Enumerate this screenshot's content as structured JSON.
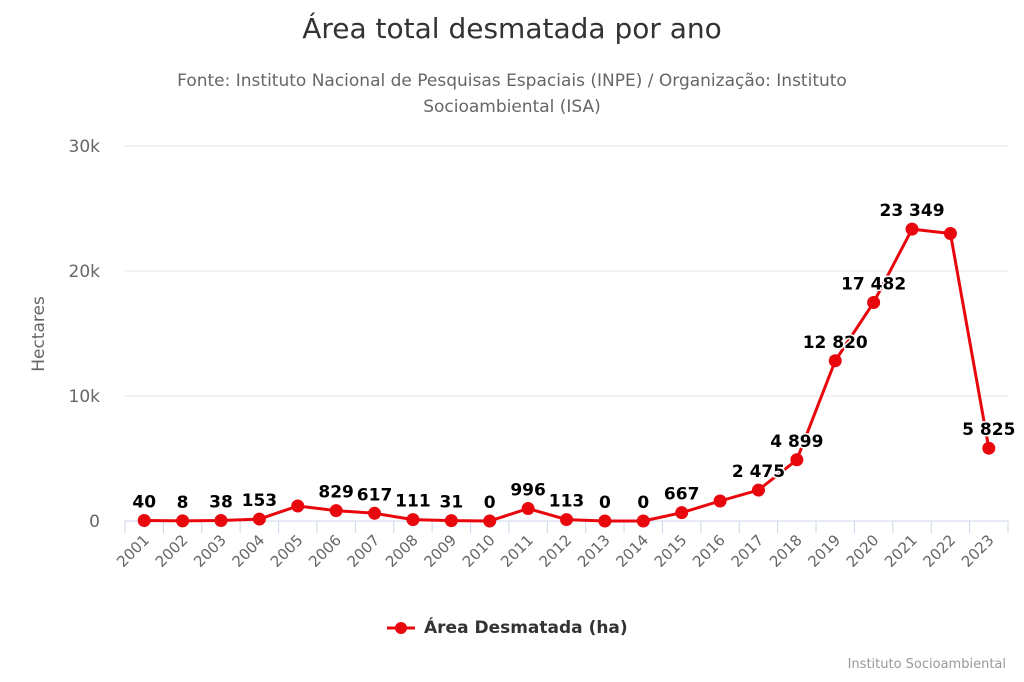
{
  "chart_data": {
    "type": "line",
    "title": "Área total desmatada por ano",
    "subtitle": "Fonte: Instituto Nacional de Pesquisas Espaciais (INPE) / Organização: Instituto Socioambiental (ISA)",
    "xlabel": "",
    "ylabel": "Hectares",
    "ylim": [
      0,
      30000
    ],
    "yticks": [
      0,
      10000,
      20000,
      30000
    ],
    "ytick_labels": [
      "0",
      "10k",
      "20k",
      "30k"
    ],
    "grid": true,
    "legend_position": "bottom-center",
    "categories": [
      "2001",
      "2002",
      "2003",
      "2004",
      "2005",
      "2006",
      "2007",
      "2008",
      "2009",
      "2010",
      "2011",
      "2012",
      "2013",
      "2014",
      "2015",
      "2016",
      "2017",
      "2018",
      "2019",
      "2020",
      "2021",
      "2022",
      "2023"
    ],
    "series": [
      {
        "name": "Área Desmatada (ha)",
        "color": "#e8070c",
        "values": [
          40,
          8,
          38,
          153,
          1200,
          829,
          617,
          111,
          31,
          0,
          996,
          113,
          0,
          0,
          667,
          1600,
          2475,
          4899,
          12820,
          17482,
          23349,
          23000,
          5825
        ],
        "data_labels": [
          "40",
          "8",
          "38",
          "153",
          "",
          "829",
          "617",
          "111",
          "31",
          "0",
          "996",
          "113",
          "0",
          "0",
          "667",
          "",
          "2 475",
          "4 899",
          "12 820",
          "17 482",
          "23 349",
          "",
          "5 825"
        ]
      }
    ]
  },
  "credits": "Instituto Socioambiental"
}
